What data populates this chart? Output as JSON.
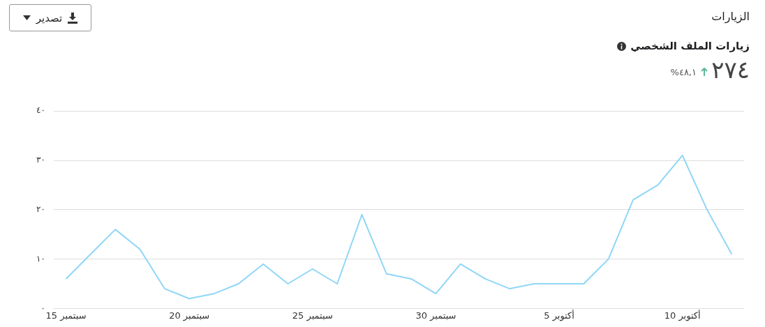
{
  "chart_data": {
    "type": "line",
    "title": "الزيارات",
    "subtitle": "زيارات الملف الشخصي",
    "annotations": [
      "٢٧٤",
      "٤٨,١%",
      "تصدير"
    ],
    "categories": [
      "15 سبتمبر",
      null,
      null,
      null,
      null,
      "20 سبتمبر",
      null,
      null,
      null,
      null,
      "25 سبتمبر",
      null,
      null,
      null,
      null,
      "30 سبتمبر",
      null,
      null,
      null,
      null,
      "5 أكتوبر",
      null,
      null,
      null,
      null,
      "10 أكتوبر",
      null,
      null
    ],
    "series": [
      {
        "color": "#8fd6f7",
        "values": [
          6,
          11,
          16,
          12,
          4,
          2,
          3,
          5,
          9,
          5,
          8,
          5,
          19,
          7,
          6,
          3,
          9,
          6,
          4,
          5,
          5,
          5,
          10,
          22,
          25,
          31,
          20,
          11
        ]
      }
    ],
    "ylim": [
      0,
      40
    ],
    "yticks": [
      {
        "value": 0,
        "label": "٠"
      },
      {
        "value": 10,
        "label": "١٠"
      },
      {
        "value": 20,
        "label": "٢٠"
      },
      {
        "value": 30,
        "label": "٣٠"
      },
      {
        "value": 40,
        "label": "٤٠"
      }
    ],
    "grid": "y",
    "legend": false,
    "marker": "none",
    "line_style": "solid"
  }
}
